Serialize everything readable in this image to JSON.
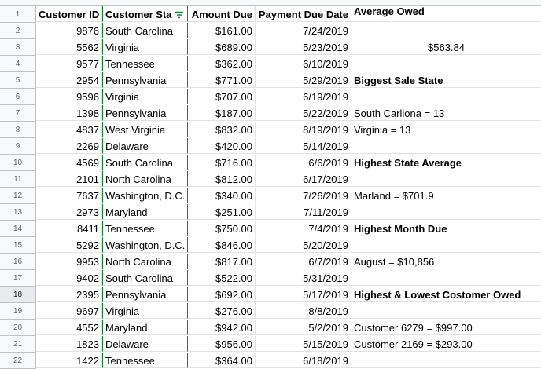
{
  "headers": {
    "rownum": "1",
    "customer_id": "Customer ID",
    "customer_state": "Customer Sta",
    "amount_due": "Amount Due",
    "payment_due_date": "Payment Due Date",
    "side_title": "Average Owed"
  },
  "rows": [
    {
      "n": "2",
      "id": "9876",
      "state": "South Carolina",
      "amt": "$161.00",
      "date": "7/24/2019",
      "side": ""
    },
    {
      "n": "3",
      "id": "5562",
      "state": "Virginia",
      "amt": "$689.00",
      "date": "5/23/2019",
      "side": "$563.84"
    },
    {
      "n": "4",
      "id": "9577",
      "state": "Tennessee",
      "amt": "$362.00",
      "date": "6/10/2019",
      "side": ""
    },
    {
      "n": "5",
      "id": "2954",
      "state": "Pennsylvania",
      "amt": "$771.00",
      "date": "5/29/2019",
      "side": "Biggest Sale State"
    },
    {
      "n": "6",
      "id": "9596",
      "state": "Virginia",
      "amt": "$707.00",
      "date": "6/19/2019",
      "side": ""
    },
    {
      "n": "7",
      "id": "1398",
      "state": "Pennsylvania",
      "amt": "$187.00",
      "date": "5/22/2019",
      "side": "South Carliona = 13"
    },
    {
      "n": "8",
      "id": "4837",
      "state": "West Virginia",
      "amt": "$832.00",
      "date": "8/19/2019",
      "side": "Virginia = 13"
    },
    {
      "n": "9",
      "id": "2269",
      "state": "Delaware",
      "amt": "$420.00",
      "date": "5/14/2019",
      "side": ""
    },
    {
      "n": "10",
      "id": "4569",
      "state": "South Carolina",
      "amt": "$716.00",
      "date": "6/6/2019",
      "side": "Highest State Average"
    },
    {
      "n": "11",
      "id": "2101",
      "state": "North Carolina",
      "amt": "$812.00",
      "date": "6/17/2019",
      "side": ""
    },
    {
      "n": "12",
      "id": "7637",
      "state": "Washington, D.C.",
      "amt": "$340.00",
      "date": "7/26/2019",
      "side": "Marland = $701.9"
    },
    {
      "n": "13",
      "id": "2973",
      "state": "Maryland",
      "amt": "$251.00",
      "date": "7/11/2019",
      "side": ""
    },
    {
      "n": "14",
      "id": "8411",
      "state": "Tennessee",
      "amt": "$750.00",
      "date": "7/4/2019",
      "side": "Highest Month Due"
    },
    {
      "n": "15",
      "id": "5292",
      "state": "Washington, D.C.",
      "amt": "$846.00",
      "date": "5/20/2019",
      "side": ""
    },
    {
      "n": "16",
      "id": "9953",
      "state": "North Carolina",
      "amt": "$817.00",
      "date": "6/7/2019",
      "side": "August = $10,856"
    },
    {
      "n": "17",
      "id": "9402",
      "state": "South Carolina",
      "amt": "$522.00",
      "date": "5/31/2019",
      "side": ""
    },
    {
      "n": "18",
      "id": "2395",
      "state": "Pennsylvania",
      "amt": "$692.00",
      "date": "5/17/2019",
      "side": "Highest & Lowest Costomer Owed"
    },
    {
      "n": "19",
      "id": "9697",
      "state": "Virginia",
      "amt": "$276.00",
      "date": "8/8/2019",
      "side": ""
    },
    {
      "n": "20",
      "id": "4552",
      "state": "Maryland",
      "amt": "$942.00",
      "date": "5/2/2019",
      "side": "Customer 6279 = $997.00"
    },
    {
      "n": "21",
      "id": "1823",
      "state": "Delaware",
      "amt": "$956.00",
      "date": "5/15/2019",
      "side": "Customer 2169 = $293.00"
    },
    {
      "n": "22",
      "id": "1422",
      "state": "Tennessee",
      "amt": "$364.00",
      "date": "6/18/2019",
      "side": ""
    }
  ]
}
